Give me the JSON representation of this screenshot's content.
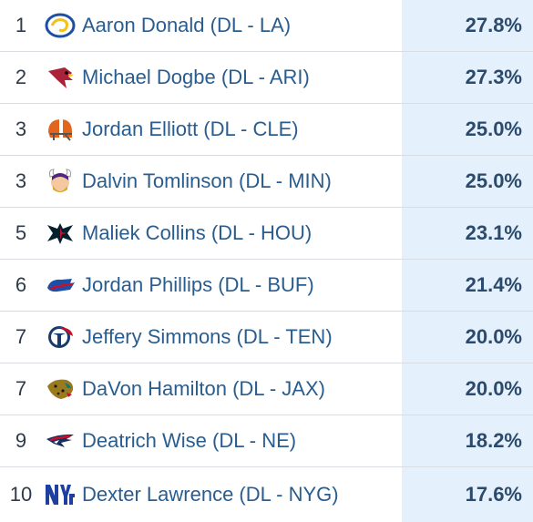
{
  "rows": [
    {
      "rank": "1",
      "player": "Aaron Donald (DL - LA)",
      "pct": "27.8%",
      "team_icon": "rams-logo-icon",
      "team_color": "#1f4fa3"
    },
    {
      "rank": "2",
      "player": "Michael Dogbe (DL - ARI)",
      "pct": "27.3%",
      "team_icon": "cardinals-logo-icon",
      "team_color": "#a8233a"
    },
    {
      "rank": "3",
      "player": "Jordan Elliott (DL - CLE)",
      "pct": "25.0%",
      "team_icon": "browns-logo-icon",
      "team_color": "#e3651d"
    },
    {
      "rank": "3",
      "player": "Dalvin Tomlinson (DL - MIN)",
      "pct": "25.0%",
      "team_icon": "vikings-logo-icon",
      "team_color": "#d9a628"
    },
    {
      "rank": "5",
      "player": "Maliek Collins (DL - HOU)",
      "pct": "23.1%",
      "team_icon": "texans-logo-icon",
      "team_color": "#c8102e"
    },
    {
      "rank": "6",
      "player": "Jordan Phillips (DL - BUF)",
      "pct": "21.4%",
      "team_icon": "bills-logo-icon",
      "team_color": "#1d4fa8"
    },
    {
      "rank": "7",
      "player": "Jeffery Simmons (DL - TEN)",
      "pct": "20.0%",
      "team_icon": "titans-logo-icon",
      "team_color": "#1a3a6b"
    },
    {
      "rank": "7",
      "player": "DaVon Hamilton (DL - JAX)",
      "pct": "20.0%",
      "team_icon": "jaguars-logo-icon",
      "team_color": "#9a7a1e"
    },
    {
      "rank": "9",
      "player": "Deatrich Wise (DL - NE)",
      "pct": "18.2%",
      "team_icon": "patriots-logo-icon",
      "team_color": "#1b2f5c"
    },
    {
      "rank": "10",
      "player": "Dexter Lawrence (DL - NYG)",
      "pct": "17.6%",
      "team_icon": "giants-logo-icon",
      "team_color": "#1e3fa0"
    }
  ]
}
